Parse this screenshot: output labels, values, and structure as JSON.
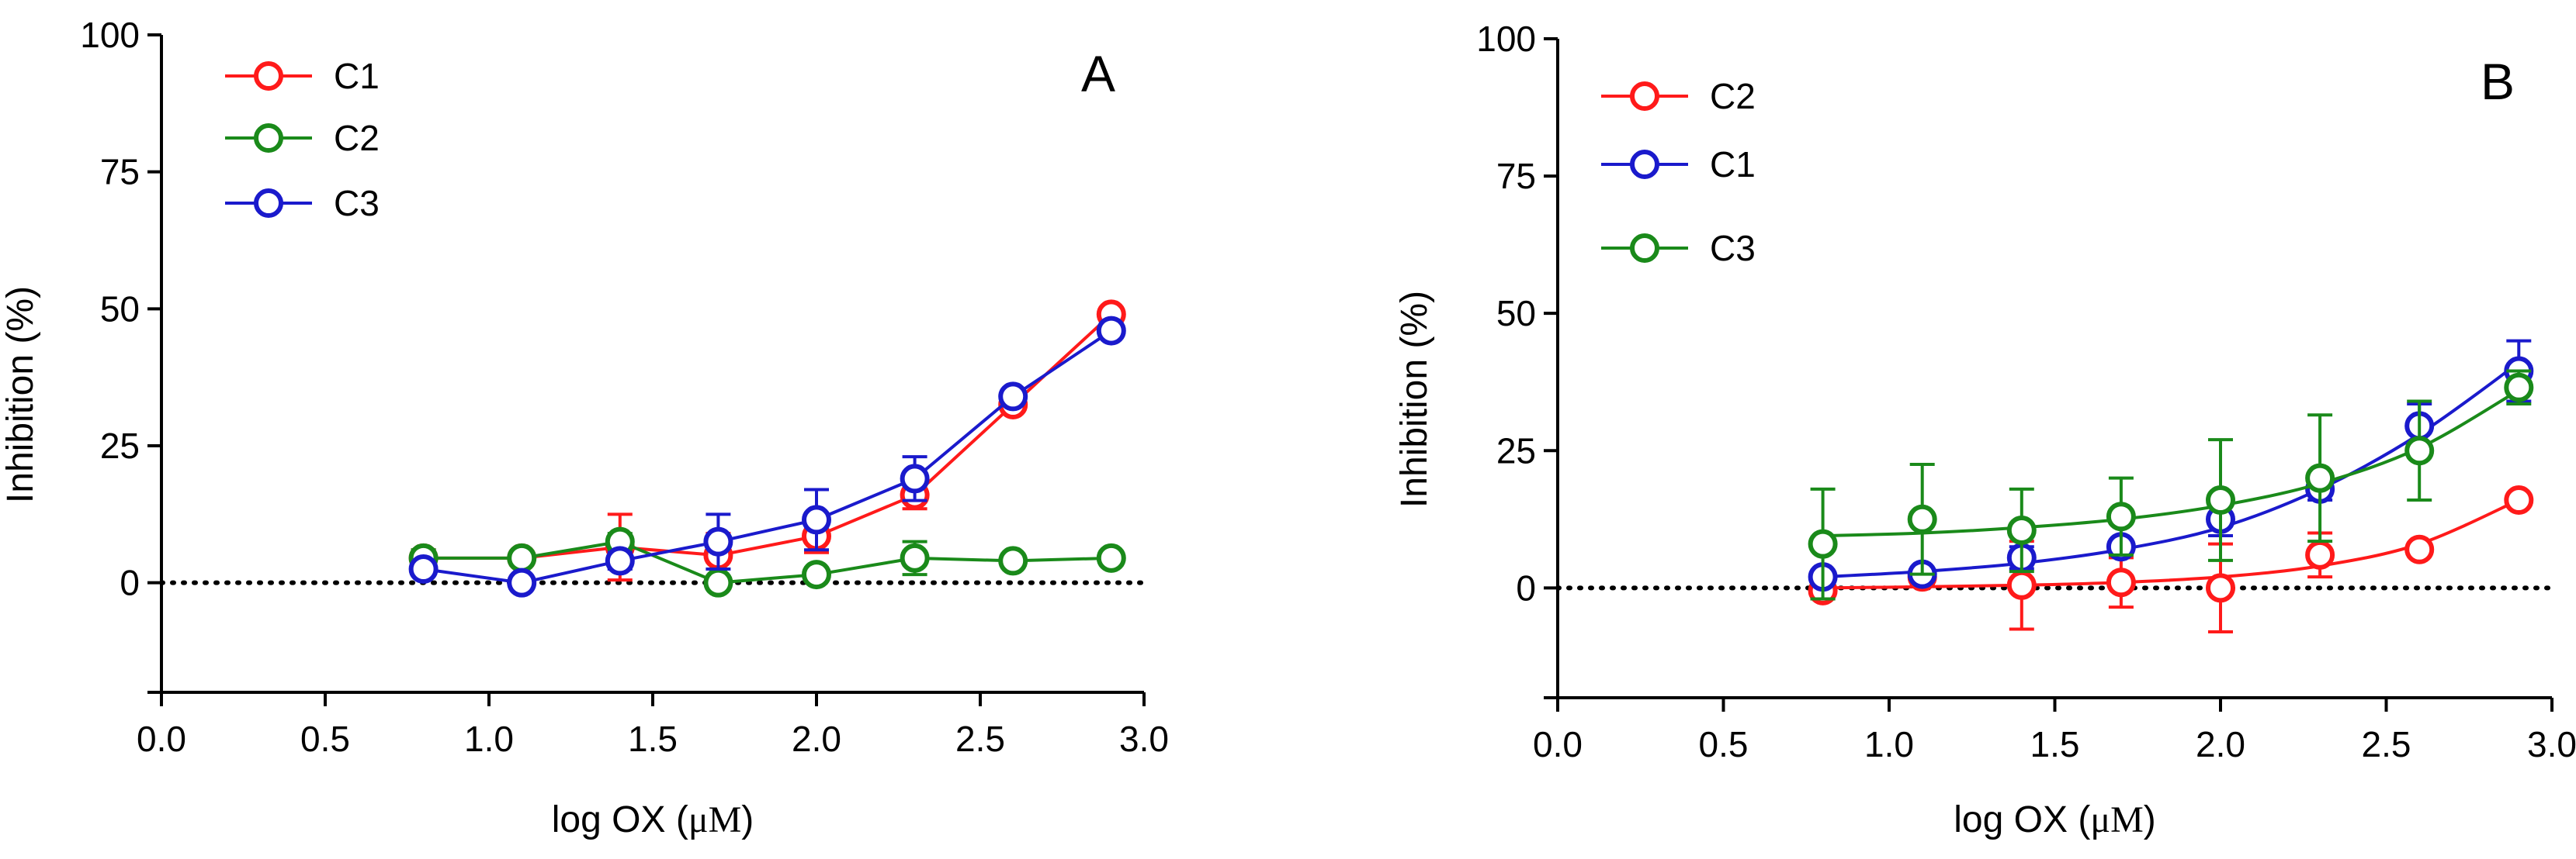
{
  "chart_data": [
    {
      "type": "line",
      "panel_label": "A",
      "xlabel": "log OX (",
      "xlabel_unit": "μM",
      "xlabel_close": ")",
      "ylabel": "Inhibition (%)",
      "xlim": [
        0.0,
        3.0
      ],
      "ylim": [
        -20,
        100
      ],
      "x_ticks": [
        "0.0",
        "0.5",
        "1.0",
        "1.5",
        "2.0",
        "2.5",
        "3.0"
      ],
      "y_ticks": [
        "0",
        "25",
        "50",
        "75",
        "100"
      ],
      "baseline": 0,
      "legend_position": "top-left",
      "fit_style": "connected",
      "series": [
        {
          "name": "C1",
          "color": "#ff1a1a",
          "x": [
            0.8,
            1.1,
            1.4,
            1.7,
            2.0,
            2.3,
            2.6,
            2.9
          ],
          "y": [
            4.5,
            4.5,
            6.5,
            5,
            8.5,
            16,
            32.5,
            49
          ],
          "err": [
            1.5,
            1,
            6,
            4,
            3,
            2.5,
            1,
            1
          ]
        },
        {
          "name": "C2",
          "color": "#1a8a1a",
          "x": [
            0.8,
            1.1,
            1.4,
            1.7,
            2.0,
            2.3,
            2.6,
            2.9
          ],
          "y": [
            4.5,
            4.5,
            7.5,
            0,
            1.5,
            4.5,
            4,
            4.5
          ],
          "err": [
            1.5,
            1,
            1.5,
            1,
            1,
            3,
            1,
            1
          ]
        },
        {
          "name": "C3",
          "color": "#1a1acc",
          "x": [
            0.8,
            1.1,
            1.4,
            1.7,
            2.0,
            2.3,
            2.6,
            2.9
          ],
          "y": [
            2.5,
            0,
            4,
            7.5,
            11.5,
            19,
            34,
            46
          ],
          "err": [
            1,
            1,
            1.5,
            5,
            5.5,
            4,
            1,
            1
          ]
        }
      ]
    },
    {
      "type": "line",
      "panel_label": "B",
      "xlabel": "log OX (",
      "xlabel_unit": "μM",
      "xlabel_close": ")",
      "ylabel": "Inhibition (%)",
      "xlim": [
        0.0,
        3.0
      ],
      "ylim": [
        -20,
        100
      ],
      "x_ticks": [
        "0.0",
        "0.5",
        "1.0",
        "1.5",
        "2.0",
        "2.5",
        "3.0"
      ],
      "y_ticks": [
        "0",
        "25",
        "50",
        "75",
        "100"
      ],
      "baseline": 0,
      "legend_position": "top-left",
      "fit_style": "smooth",
      "series": [
        {
          "name": "C2",
          "color": "#ff1a1a",
          "x": [
            0.8,
            1.1,
            1.4,
            1.7,
            2.0,
            2.3,
            2.6,
            2.9
          ],
          "y": [
            -0.5,
            2,
            0.5,
            1,
            0,
            6,
            7,
            16
          ],
          "err": [
            1.5,
            1.5,
            8,
            4.5,
            8,
            4,
            1,
            1
          ],
          "fit": [
            0,
            0.2,
            0.5,
            1,
            2,
            4,
            8,
            16
          ]
        },
        {
          "name": "C1",
          "color": "#1a1acc",
          "x": [
            0.8,
            1.1,
            1.4,
            1.7,
            2.0,
            2.3,
            2.6,
            2.9
          ],
          "y": [
            2,
            2.5,
            5.5,
            7.5,
            12.5,
            18,
            29.5,
            39.5
          ],
          "err": [
            1,
            1,
            2,
            1,
            3,
            2,
            4,
            5.5
          ],
          "fit": [
            2,
            3,
            4.5,
            7,
            11,
            18,
            28,
            41
          ]
        },
        {
          "name": "C3",
          "color": "#1a8a1a",
          "x": [
            0.8,
            1.1,
            1.4,
            1.7,
            2.0,
            2.3,
            2.6,
            2.9
          ],
          "y": [
            8,
            12.5,
            10.5,
            13,
            16,
            20,
            25,
            36.5
          ],
          "err": [
            10,
            10,
            7.5,
            7,
            11,
            11.5,
            9,
            3
          ],
          "fit": [
            9.5,
            10,
            11,
            12.5,
            15,
            19,
            25.5,
            36
          ]
        }
      ]
    }
  ]
}
